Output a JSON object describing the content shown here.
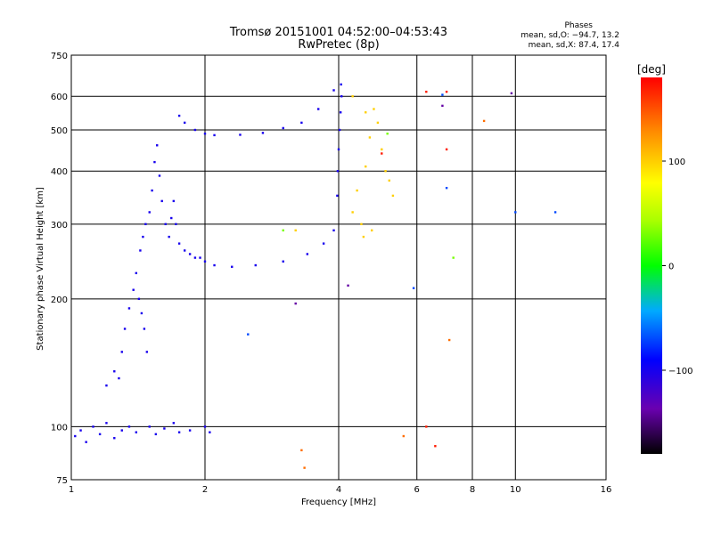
{
  "chart_data": {
    "type": "scatter",
    "title": "Tromsø 20151001 04:52:00–04:53:43",
    "subtitle": "RwPretec (8p)",
    "xlabel": "Frequency [MHz]",
    "ylabel": "Stationary phase Virtual Height [km]",
    "x_scale": "log",
    "y_scale": "log",
    "xlim": [
      1,
      16
    ],
    "ylim": [
      75,
      750
    ],
    "x_ticks": [
      1,
      2,
      4,
      6,
      8,
      10,
      16
    ],
    "x_tick_labels": [
      "1",
      "2",
      "4",
      "6",
      "8",
      "10",
      "16"
    ],
    "y_ticks": [
      75,
      100,
      200,
      300,
      400,
      500,
      600,
      750
    ],
    "y_tick_labels": [
      "75",
      "100",
      "200",
      "300",
      "400",
      "500",
      "600",
      "750"
    ],
    "grid": true,
    "phases_box": {
      "heading": "Phases",
      "line_o": "mean, sd,O: −94.7, 13.2",
      "line_x": "mean, sd,X:  87.4, 17.4"
    },
    "colorbar": {
      "unit_label": "[deg]",
      "range": [
        -180,
        180
      ],
      "tick_values": [
        100,
        0,
        -100
      ],
      "tick_labels": [
        "100",
        "0",
        "−100"
      ],
      "colormap": "rainbow"
    },
    "series": [
      {
        "phase_deg": -100,
        "points": [
          [
            1.02,
            95
          ],
          [
            1.05,
            98
          ],
          [
            1.08,
            92
          ],
          [
            1.12,
            100
          ],
          [
            1.16,
            96
          ],
          [
            1.2,
            102
          ],
          [
            1.25,
            94
          ],
          [
            1.3,
            98
          ],
          [
            1.35,
            100
          ],
          [
            1.4,
            97
          ],
          [
            1.5,
            100
          ],
          [
            1.55,
            96
          ],
          [
            1.62,
            99
          ],
          [
            1.7,
            102
          ],
          [
            1.75,
            97
          ],
          [
            1.85,
            98
          ],
          [
            2.0,
            100
          ],
          [
            2.05,
            97
          ],
          [
            1.2,
            125
          ],
          [
            1.25,
            135
          ],
          [
            1.28,
            130
          ],
          [
            1.3,
            150
          ],
          [
            1.32,
            170
          ],
          [
            1.35,
            190
          ],
          [
            1.38,
            210
          ],
          [
            1.4,
            230
          ],
          [
            1.42,
            200
          ],
          [
            1.44,
            185
          ],
          [
            1.46,
            170
          ],
          [
            1.48,
            150
          ],
          [
            1.43,
            260
          ],
          [
            1.45,
            280
          ],
          [
            1.47,
            300
          ],
          [
            1.5,
            320
          ],
          [
            1.52,
            360
          ],
          [
            1.54,
            420
          ],
          [
            1.56,
            460
          ],
          [
            1.58,
            390
          ],
          [
            1.6,
            340
          ],
          [
            1.63,
            300
          ],
          [
            1.66,
            280
          ],
          [
            1.68,
            310
          ],
          [
            1.7,
            340
          ],
          [
            1.72,
            300
          ],
          [
            1.75,
            270
          ],
          [
            1.8,
            260
          ],
          [
            1.85,
            255
          ],
          [
            1.9,
            250
          ],
          [
            1.95,
            250
          ],
          [
            2.0,
            245
          ],
          [
            2.1,
            240
          ],
          [
            1.75,
            540
          ],
          [
            1.8,
            520
          ],
          [
            1.9,
            500
          ],
          [
            2.0,
            490
          ],
          [
            2.1,
            486
          ],
          [
            2.4,
            487
          ],
          [
            2.7,
            492
          ],
          [
            3.0,
            505
          ],
          [
            3.3,
            520
          ],
          [
            3.6,
            560
          ],
          [
            3.9,
            620
          ],
          [
            2.3,
            238
          ],
          [
            2.6,
            240
          ],
          [
            3.0,
            245
          ],
          [
            3.4,
            255
          ],
          [
            3.7,
            270
          ],
          [
            3.9,
            290
          ],
          [
            3.97,
            350
          ],
          [
            3.98,
            400
          ],
          [
            4.0,
            450
          ],
          [
            4.02,
            500
          ],
          [
            4.04,
            550
          ],
          [
            4.06,
            600
          ],
          [
            4.05,
            640
          ]
        ]
      },
      {
        "phase_deg": 100,
        "points": [
          [
            4.3,
            320
          ],
          [
            4.4,
            360
          ],
          [
            4.5,
            300
          ],
          [
            4.6,
            410
          ],
          [
            4.7,
            480
          ],
          [
            4.8,
            560
          ],
          [
            4.9,
            520
          ],
          [
            5.0,
            450
          ],
          [
            5.1,
            400
          ],
          [
            5.3,
            350
          ],
          [
            4.55,
            280
          ],
          [
            4.75,
            290
          ],
          [
            5.2,
            380
          ],
          [
            3.2,
            290
          ],
          [
            4.3,
            600
          ],
          [
            4.6,
            550
          ]
        ]
      },
      {
        "phase_deg": 170,
        "points": [
          [
            6.3,
            615
          ],
          [
            7.0,
            615
          ],
          [
            7.0,
            450
          ],
          [
            6.3,
            100
          ],
          [
            6.6,
            90
          ],
          [
            5.0,
            440
          ]
        ]
      },
      {
        "phase_deg": 140,
        "points": [
          [
            7.1,
            160
          ],
          [
            8.5,
            525
          ],
          [
            3.3,
            88
          ],
          [
            3.35,
            80
          ],
          [
            5.6,
            95
          ]
        ]
      },
      {
        "phase_deg": 30,
        "points": [
          [
            7.25,
            250
          ],
          [
            5.15,
            490
          ],
          [
            3.0,
            290
          ]
        ]
      },
      {
        "phase_deg": -70,
        "points": [
          [
            10.0,
            320
          ],
          [
            12.3,
            320
          ],
          [
            2.5,
            165
          ],
          [
            5.9,
            212
          ],
          [
            7.0,
            365
          ],
          [
            6.85,
            605
          ]
        ]
      },
      {
        "phase_deg": -140,
        "points": [
          [
            9.8,
            610
          ],
          [
            3.2,
            195
          ],
          [
            6.85,
            570
          ],
          [
            4.2,
            215
          ]
        ]
      }
    ]
  }
}
